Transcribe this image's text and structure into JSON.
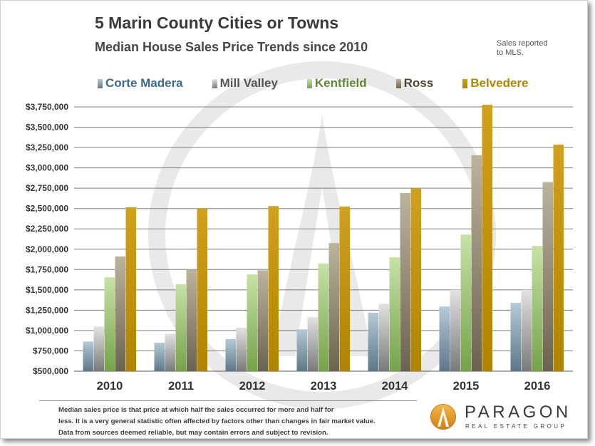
{
  "chart_data": {
    "type": "bar",
    "title": "5 Marin County Cities or Towns",
    "subtitle": "Median House Sales Price Trends since 2010",
    "categories": [
      "2010",
      "2011",
      "2012",
      "2013",
      "2014",
      "2015",
      "2016"
    ],
    "series": [
      {
        "name": "Corte Madera",
        "values": [
          865000,
          850000,
          895000,
          1015000,
          1220000,
          1295000,
          1340000
        ],
        "color": "#5c7888",
        "color_light": "#b4cad6",
        "label_color": "#3c6a8c"
      },
      {
        "name": "Mill Valley",
        "values": [
          1050000,
          960000,
          1035000,
          1165000,
          1330000,
          1500000,
          1500000
        ],
        "color": "#7a7a7a",
        "color_light": "#e2e2e2",
        "label_color": "#555555"
      },
      {
        "name": "Kentfield",
        "values": [
          1655000,
          1570000,
          1690000,
          1825000,
          1900000,
          2180000,
          2040000
        ],
        "color": "#76a24a",
        "color_light": "#c6e2a6",
        "label_color": "#5b8a32"
      },
      {
        "name": "Ross",
        "values": [
          1910000,
          1750000,
          1740000,
          2075000,
          2690000,
          3155000,
          2825000
        ],
        "color": "#6b6352",
        "color_light": "#bcb39d",
        "label_color": "#4b4535"
      },
      {
        "name": "Belvedere",
        "values": [
          2515000,
          2500000,
          2530000,
          2525000,
          2745000,
          3775000,
          3285000
        ],
        "color": "#b08400",
        "color_light": "#d1a01c",
        "label_color": "#b08600"
      }
    ],
    "ylim": [
      500000,
      3750000
    ],
    "y_ticks": [
      500000,
      750000,
      1000000,
      1250000,
      1500000,
      1750000,
      2000000,
      2250000,
      2500000,
      2750000,
      3000000,
      3250000,
      3500000,
      3750000
    ],
    "y_tick_labels": [
      "$500,000",
      "$750,000",
      "$1,000,000",
      "$1,250,000",
      "$1,500,000",
      "$1,750,000",
      "$2,000,000",
      "$2,250,000",
      "$2,500,000",
      "$2,750,000",
      "$3,000,000",
      "$3,250,000",
      "$3,500,000",
      "$3,750,000"
    ],
    "grid": true,
    "legend_position": "top"
  },
  "note": [
    "Sales reported",
    "to MLS."
  ],
  "footer": {
    "lines": [
      "Median sales price is that price at which half the sales occurred for more and half for",
      "less. It is a very general statistic often affected by factors other than changes in fair market value.",
      "Data from sources deemed reliable, but may contain errors and subject to revision."
    ]
  },
  "logo": {
    "name": "PARAGON",
    "tagline": "REAL ESTATE GROUP",
    "icon": "paragon-circle-spire-icon",
    "color": "#e29a2c"
  },
  "watermark": {
    "icon": "paragon-logo-watermark",
    "color": "#e9e9e9"
  }
}
